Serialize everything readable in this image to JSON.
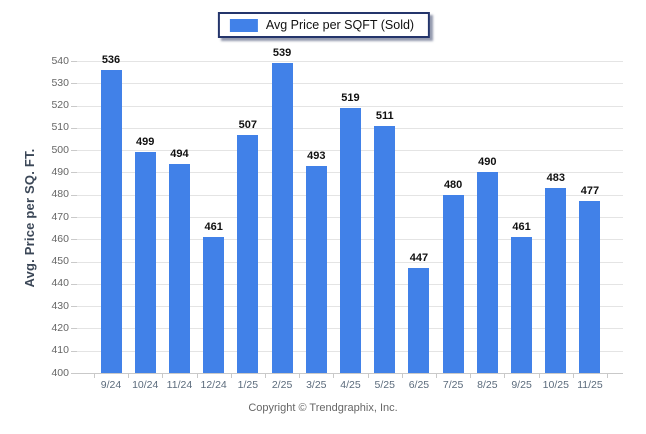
{
  "legend": {
    "label": "Avg Price per SQFT (Sold)",
    "swatch": "bar-color"
  },
  "y_axis": {
    "title": "Avg. Price per SQ. FT."
  },
  "footer": {
    "copyright": "Copyright © Trendgraphix, Inc."
  },
  "colors": {
    "bar": "#4181e8",
    "legend_border": "#24356b",
    "gridline": "#e4e4e4",
    "axis_tick": "#c9c9c9",
    "y_tick_label": "#666666",
    "x_tick_label": "#5b6b7c",
    "value_label": "#111111",
    "y_title": "#3b4757",
    "copyright_text": "#666666"
  },
  "chart_data": {
    "type": "bar",
    "title": "",
    "series_name": "Avg Price per SQFT (Sold)",
    "categories": [
      "9/24",
      "10/24",
      "11/24",
      "12/24",
      "1/25",
      "2/25",
      "3/25",
      "4/25",
      "5/25",
      "6/25",
      "7/25",
      "8/25",
      "9/25",
      "10/25",
      "11/25"
    ],
    "values": [
      536,
      499,
      494,
      461,
      507,
      539,
      493,
      519,
      511,
      447,
      480,
      490,
      461,
      483,
      477
    ],
    "xlabel": "",
    "ylabel": "Avg. Price per SQ. FT.",
    "ylim": [
      400,
      540
    ],
    "ytick_step": 10,
    "grid": true,
    "legend_position": "top-center"
  }
}
